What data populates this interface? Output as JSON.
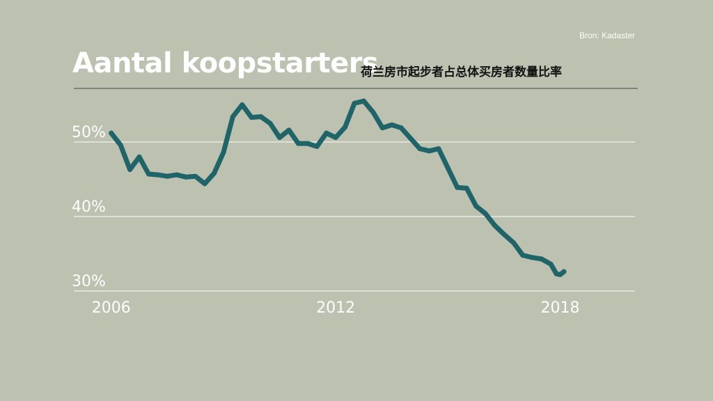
{
  "header": {
    "title": "Aantal koopstarters",
    "subtitle": "荷兰房市起步者占总体买房者数量比率",
    "source": "Bron: Kadaster"
  },
  "colors": {
    "background": "#bcc1b0",
    "line": "#1f6468",
    "grid": "#ffffff",
    "text": "#ffffff",
    "rule": "#7f857a"
  },
  "chart_data": {
    "type": "line",
    "title": "Aantal koopstarters",
    "subtitle": "荷兰房市起步者占总体买房者数量比率",
    "xlabel": "",
    "ylabel": "",
    "xlim": [
      2005.0,
      2020.0
    ],
    "ylim": [
      30,
      50
    ],
    "x_ticks": [
      2006,
      2012,
      2018
    ],
    "x_tick_labels": [
      "2006",
      "2012",
      "2018"
    ],
    "y_ticks": [
      30,
      40,
      50
    ],
    "y_tick_labels": [
      "30%",
      "40%",
      "50%"
    ],
    "grid": "horizontal",
    "series": [
      {
        "values": [
          [
            2006.0,
            51.2
          ],
          [
            2006.25,
            49.6
          ],
          [
            2006.5,
            46.3
          ],
          [
            2006.75,
            48.0
          ],
          [
            2007.0,
            45.7
          ],
          [
            2007.25,
            45.6
          ],
          [
            2007.5,
            45.4
          ],
          [
            2007.75,
            45.6
          ],
          [
            2008.0,
            45.3
          ],
          [
            2008.25,
            45.4
          ],
          [
            2008.5,
            44.4
          ],
          [
            2008.75,
            45.8
          ],
          [
            2009.0,
            48.6
          ],
          [
            2009.25,
            53.4
          ],
          [
            2009.5,
            55.0
          ],
          [
            2009.75,
            53.3
          ],
          [
            2010.0,
            53.4
          ],
          [
            2010.25,
            52.5
          ],
          [
            2010.5,
            50.6
          ],
          [
            2010.75,
            51.6
          ],
          [
            2011.0,
            49.8
          ],
          [
            2011.25,
            49.8
          ],
          [
            2011.5,
            49.4
          ],
          [
            2011.75,
            51.2
          ],
          [
            2012.0,
            50.6
          ],
          [
            2012.25,
            52.0
          ],
          [
            2012.5,
            55.2
          ],
          [
            2012.75,
            55.5
          ],
          [
            2013.0,
            54.0
          ],
          [
            2013.25,
            51.9
          ],
          [
            2013.5,
            52.3
          ],
          [
            2013.75,
            51.9
          ],
          [
            2014.0,
            50.5
          ],
          [
            2014.25,
            49.1
          ],
          [
            2014.5,
            48.8
          ],
          [
            2014.75,
            49.1
          ],
          [
            2015.0,
            46.5
          ],
          [
            2015.25,
            43.9
          ],
          [
            2015.5,
            43.8
          ],
          [
            2015.75,
            41.4
          ],
          [
            2016.0,
            40.4
          ],
          [
            2016.25,
            38.8
          ],
          [
            2016.5,
            37.6
          ],
          [
            2016.75,
            36.5
          ],
          [
            2017.0,
            34.8
          ],
          [
            2017.25,
            34.5
          ],
          [
            2017.5,
            34.3
          ],
          [
            2017.75,
            33.6
          ],
          [
            2017.9,
            32.3
          ],
          [
            2018.0,
            32.2
          ],
          [
            2018.1,
            32.6
          ]
        ]
      }
    ]
  }
}
